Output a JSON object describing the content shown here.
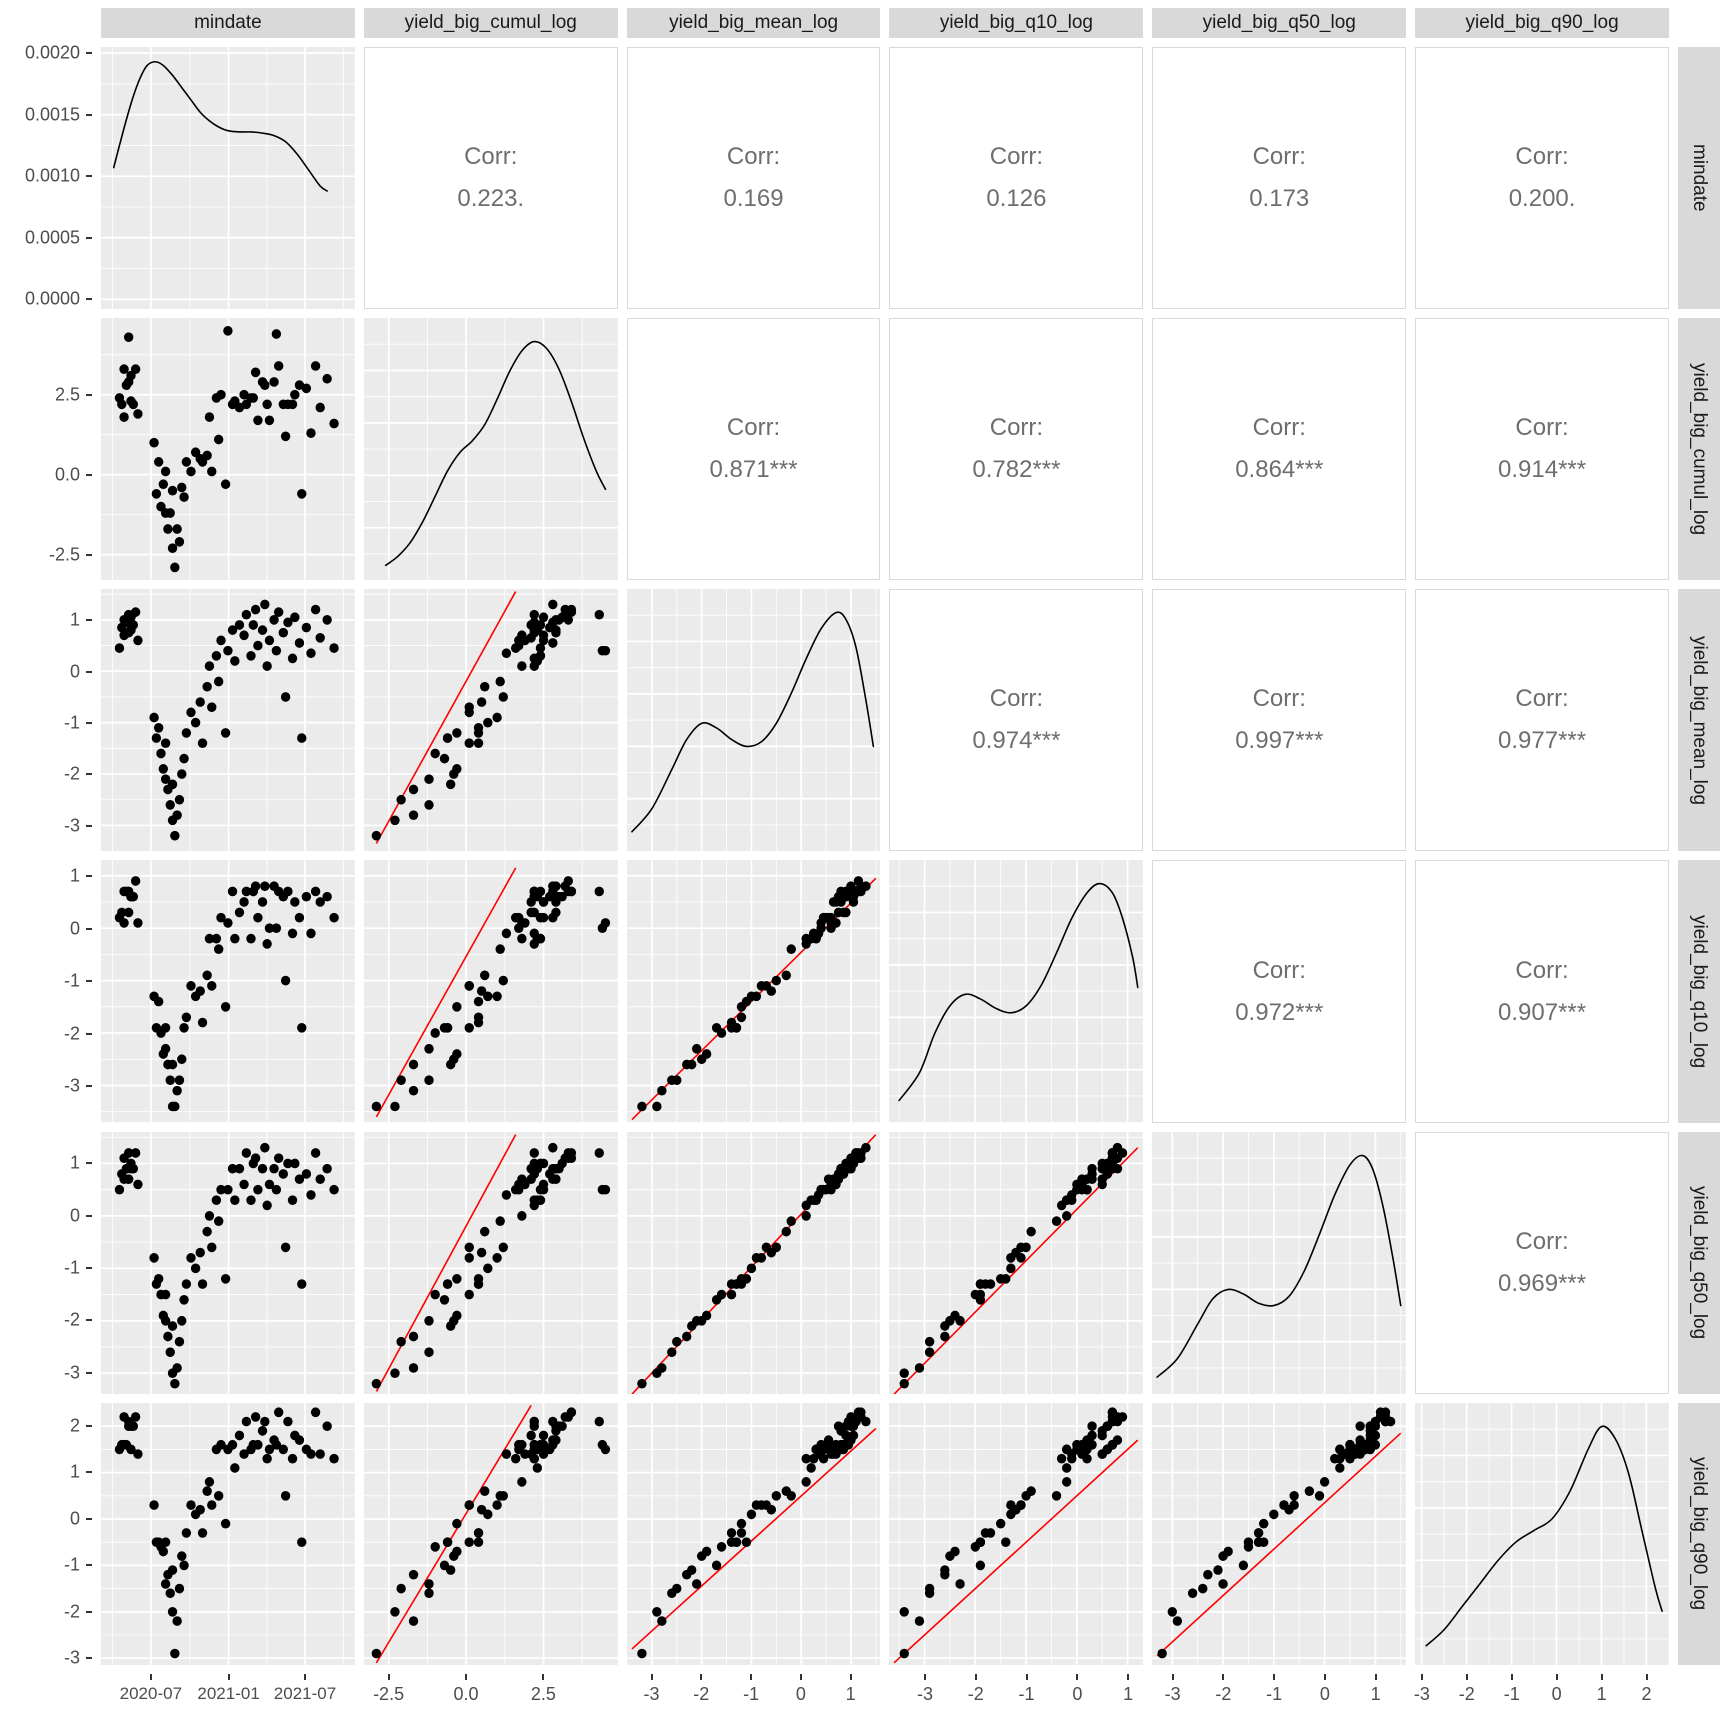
{
  "chart_data": {
    "type": "scatterplot-matrix",
    "corr_prefix": "Corr:",
    "variables": [
      {
        "name": "mindate",
        "domain": [
          -0.05,
          1.05
        ],
        "ticks": [
          0.166,
          0.503,
          0.834
        ],
        "tick_labels": [
          "2020-07",
          "2021-01",
          "2021-07"
        ],
        "minor": [
          0.0,
          0.335,
          0.669,
          1.0
        ]
      },
      {
        "name": "yield_big_cumul_log",
        "domain": [
          -3.3,
          4.9
        ],
        "ticks": [
          -2.5,
          0,
          2.5
        ],
        "tick_labels": [
          "-2.5",
          "0.0",
          "2.5"
        ],
        "minor": [
          -1.25,
          1.25,
          3.75
        ]
      },
      {
        "name": "yield_big_mean_log",
        "domain": [
          -3.5,
          1.6
        ],
        "ticks": [
          -3,
          -2,
          -1,
          0,
          1
        ],
        "tick_labels": [
          "-3",
          "-2",
          "-1",
          "0",
          "1"
        ],
        "minor": [
          -2.5,
          -1.5,
          -0.5,
          0.5,
          1.5
        ]
      },
      {
        "name": "yield_big_q10_log",
        "domain": [
          -3.7,
          1.3
        ],
        "ticks": [
          -3,
          -2,
          -1,
          0,
          1
        ],
        "tick_labels": [
          "-3",
          "-2",
          "-1",
          "0",
          "1"
        ],
        "minor": [
          -3.5,
          -2.5,
          -1.5,
          -0.5,
          0.5
        ]
      },
      {
        "name": "yield_big_q50_log",
        "domain": [
          -3.4,
          1.6
        ],
        "ticks": [
          -3,
          -2,
          -1,
          0,
          1
        ],
        "tick_labels": [
          "-3",
          "-2",
          "-1",
          "0",
          "1"
        ],
        "minor": [
          -2.5,
          -1.5,
          -0.5,
          0.5,
          1.5
        ]
      },
      {
        "name": "yield_big_q90_log",
        "domain": [
          -3.15,
          2.5
        ],
        "ticks": [
          -3,
          -2,
          -1,
          0,
          1,
          2
        ],
        "tick_labels": [
          "-3",
          "-2",
          "-1",
          "0",
          "1",
          "2"
        ],
        "minor": [
          -2.5,
          -1.5,
          -0.5,
          0.5,
          1.5
        ]
      }
    ],
    "density_axis": {
      "domain": [
        -8e-05,
        0.00205
      ],
      "ticks": [
        0,
        0.0005,
        0.001,
        0.0015,
        0.002
      ],
      "tick_labels": [
        "0.0000",
        "0.0005",
        "0.0010",
        "0.0015",
        "0.0020"
      ],
      "minor": [
        0.00025,
        0.00075,
        0.00125,
        0.00175
      ]
    },
    "correlations": [
      {
        "row": 0,
        "col": 1,
        "value": "0.223."
      },
      {
        "row": 0,
        "col": 2,
        "value": "0.169"
      },
      {
        "row": 0,
        "col": 3,
        "value": "0.126"
      },
      {
        "row": 0,
        "col": 4,
        "value": "0.173"
      },
      {
        "row": 0,
        "col": 5,
        "value": "0.200."
      },
      {
        "row": 1,
        "col": 2,
        "value": "0.871***"
      },
      {
        "row": 1,
        "col": 3,
        "value": "0.782***"
      },
      {
        "row": 1,
        "col": 4,
        "value": "0.864***"
      },
      {
        "row": 1,
        "col": 5,
        "value": "0.914***"
      },
      {
        "row": 2,
        "col": 3,
        "value": "0.974***"
      },
      {
        "row": 2,
        "col": 4,
        "value": "0.997***"
      },
      {
        "row": 2,
        "col": 5,
        "value": "0.977***"
      },
      {
        "row": 3,
        "col": 4,
        "value": "0.972***"
      },
      {
        "row": 3,
        "col": 5,
        "value": "0.907***"
      },
      {
        "row": 4,
        "col": 5,
        "value": "0.969***"
      }
    ],
    "regression_lines": [
      {
        "row": 2,
        "col": 1,
        "x1": -2.9,
        "y1": -3.35,
        "x2": 1.6,
        "y2": 1.55
      },
      {
        "row": 3,
        "col": 1,
        "x1": -2.9,
        "y1": -3.6,
        "x2": 1.6,
        "y2": 1.15
      },
      {
        "row": 4,
        "col": 1,
        "x1": -2.9,
        "y1": -3.35,
        "x2": 1.6,
        "y2": 1.55
      },
      {
        "row": 5,
        "col": 1,
        "x1": -2.9,
        "y1": -3.1,
        "x2": 2.1,
        "y2": 2.45
      },
      {
        "row": 3,
        "col": 2,
        "x1": -3.4,
        "y1": -3.65,
        "x2": 1.5,
        "y2": 0.95
      },
      {
        "row": 4,
        "col": 2,
        "x1": -3.4,
        "y1": -3.4,
        "x2": 1.5,
        "y2": 1.55
      },
      {
        "row": 5,
        "col": 2,
        "x1": -3.4,
        "y1": -2.8,
        "x2": 1.5,
        "y2": 1.95
      },
      {
        "row": 4,
        "col": 3,
        "x1": -3.6,
        "y1": -3.4,
        "x2": 1.2,
        "y2": 1.3
      },
      {
        "row": 5,
        "col": 3,
        "x1": -3.6,
        "y1": -3.1,
        "x2": 1.2,
        "y2": 1.7
      },
      {
        "row": 5,
        "col": 4,
        "x1": -3.3,
        "y1": -2.95,
        "x2": 1.5,
        "y2": 1.85
      }
    ],
    "density_curves": {
      "mindate": [
        [
          0.005,
          0.00107
        ],
        [
          0.03,
          0.00125
        ],
        [
          0.06,
          0.00146
        ],
        [
          0.09,
          0.00165
        ],
        [
          0.12,
          0.0018
        ],
        [
          0.15,
          0.0019
        ],
        [
          0.185,
          0.00193
        ],
        [
          0.22,
          0.0019
        ],
        [
          0.26,
          0.00182
        ],
        [
          0.3,
          0.00172
        ],
        [
          0.34,
          0.00162
        ],
        [
          0.38,
          0.00152
        ],
        [
          0.42,
          0.00145
        ],
        [
          0.46,
          0.0014
        ],
        [
          0.5,
          0.00137
        ],
        [
          0.55,
          0.00136
        ],
        [
          0.6,
          0.00136
        ],
        [
          0.65,
          0.00135
        ],
        [
          0.7,
          0.00133
        ],
        [
          0.75,
          0.00128
        ],
        [
          0.8,
          0.00118
        ],
        [
          0.85,
          0.00105
        ],
        [
          0.9,
          0.00092
        ],
        [
          0.93,
          0.00088
        ]
      ],
      "yield_big_cumul_log": [
        [
          -2.6,
          0.03
        ],
        [
          -2.2,
          0.07
        ],
        [
          -1.8,
          0.13
        ],
        [
          -1.4,
          0.22
        ],
        [
          -1.0,
          0.33
        ],
        [
          -0.6,
          0.44
        ],
        [
          -0.2,
          0.52
        ],
        [
          0.2,
          0.57
        ],
        [
          0.6,
          0.64
        ],
        [
          1.0,
          0.75
        ],
        [
          1.4,
          0.87
        ],
        [
          1.8,
          0.96
        ],
        [
          2.2,
          1.0
        ],
        [
          2.6,
          0.97
        ],
        [
          3.0,
          0.88
        ],
        [
          3.4,
          0.74
        ],
        [
          3.8,
          0.58
        ],
        [
          4.2,
          0.44
        ],
        [
          4.5,
          0.36
        ]
      ],
      "yield_big_mean_log": [
        [
          -3.4,
          0.05
        ],
        [
          -3.0,
          0.15
        ],
        [
          -2.6,
          0.32
        ],
        [
          -2.3,
          0.45
        ],
        [
          -2.0,
          0.52
        ],
        [
          -1.7,
          0.5
        ],
        [
          -1.4,
          0.45
        ],
        [
          -1.1,
          0.42
        ],
        [
          -0.8,
          0.44
        ],
        [
          -0.5,
          0.52
        ],
        [
          -0.2,
          0.65
        ],
        [
          0.1,
          0.8
        ],
        [
          0.4,
          0.93
        ],
        [
          0.7,
          1.0
        ],
        [
          0.9,
          0.97
        ],
        [
          1.1,
          0.85
        ],
        [
          1.3,
          0.62
        ],
        [
          1.45,
          0.42
        ]
      ],
      "yield_big_q10_log": [
        [
          -3.5,
          0.06
        ],
        [
          -3.1,
          0.18
        ],
        [
          -2.8,
          0.35
        ],
        [
          -2.5,
          0.47
        ],
        [
          -2.2,
          0.52
        ],
        [
          -1.9,
          0.5
        ],
        [
          -1.6,
          0.46
        ],
        [
          -1.3,
          0.44
        ],
        [
          -1.0,
          0.47
        ],
        [
          -0.7,
          0.56
        ],
        [
          -0.4,
          0.7
        ],
        [
          -0.1,
          0.85
        ],
        [
          0.2,
          0.96
        ],
        [
          0.45,
          1.0
        ],
        [
          0.7,
          0.96
        ],
        [
          0.9,
          0.85
        ],
        [
          1.1,
          0.68
        ],
        [
          1.2,
          0.55
        ]
      ],
      "yield_big_q50_log": [
        [
          -3.3,
          0.04
        ],
        [
          -2.9,
          0.12
        ],
        [
          -2.5,
          0.27
        ],
        [
          -2.2,
          0.38
        ],
        [
          -1.9,
          0.42
        ],
        [
          -1.6,
          0.4
        ],
        [
          -1.3,
          0.36
        ],
        [
          -1.0,
          0.35
        ],
        [
          -0.7,
          0.39
        ],
        [
          -0.4,
          0.5
        ],
        [
          -0.1,
          0.66
        ],
        [
          0.2,
          0.83
        ],
        [
          0.5,
          0.96
        ],
        [
          0.75,
          1.0
        ],
        [
          0.95,
          0.94
        ],
        [
          1.15,
          0.78
        ],
        [
          1.35,
          0.55
        ],
        [
          1.5,
          0.35
        ]
      ],
      "yield_big_q90_log": [
        [
          -2.9,
          0.05
        ],
        [
          -2.5,
          0.12
        ],
        [
          -2.1,
          0.22
        ],
        [
          -1.7,
          0.32
        ],
        [
          -1.3,
          0.42
        ],
        [
          -0.9,
          0.5
        ],
        [
          -0.5,
          0.55
        ],
        [
          -0.1,
          0.6
        ],
        [
          0.3,
          0.72
        ],
        [
          0.7,
          0.9
        ],
        [
          1.0,
          1.0
        ],
        [
          1.3,
          0.95
        ],
        [
          1.6,
          0.8
        ],
        [
          1.9,
          0.55
        ],
        [
          2.2,
          0.3
        ],
        [
          2.35,
          0.2
        ]
      ]
    },
    "observations": [
      [
        0.03,
        2.4,
        0.45,
        0.2,
        0.5,
        1.5
      ],
      [
        0.04,
        2.2,
        0.85,
        0.3,
        0.8,
        1.6
      ],
      [
        0.05,
        3.3,
        1.0,
        0.7,
        1.1,
        2.2
      ],
      [
        0.05,
        1.8,
        0.7,
        0.1,
        0.7,
        1.6
      ],
      [
        0.06,
        2.8,
        0.95,
        0.7,
        0.9,
        1.6
      ],
      [
        0.07,
        4.3,
        1.1,
        0.7,
        1.2,
        2.1
      ],
      [
        0.07,
        2.9,
        0.75,
        0.3,
        0.7,
        2.0
      ],
      [
        0.08,
        2.3,
        0.8,
        0.6,
        0.9,
        1.5
      ],
      [
        0.08,
        3.1,
        1.05,
        0.6,
        1.0,
        2.0
      ],
      [
        0.09,
        2.2,
        0.9,
        0.6,
        0.9,
        2.0
      ],
      [
        0.1,
        3.3,
        1.15,
        0.9,
        1.2,
        2.2
      ],
      [
        0.11,
        1.9,
        0.6,
        0.1,
        0.6,
        1.4
      ],
      [
        0.18,
        1.0,
        -0.9,
        -1.3,
        -0.8,
        0.3
      ],
      [
        0.19,
        -0.6,
        -1.3,
        -1.9,
        -1.3,
        -0.5
      ],
      [
        0.2,
        0.4,
        -1.1,
        -1.4,
        -1.2,
        -0.5
      ],
      [
        0.21,
        -1.0,
        -1.6,
        -2.0,
        -1.5,
        -0.6
      ],
      [
        0.22,
        -0.3,
        -1.9,
        -2.4,
        -1.9,
        -0.7
      ],
      [
        0.23,
        -1.2,
        -2.1,
        -2.3,
        -2.0,
        -1.4
      ],
      [
        0.23,
        0.1,
        -1.4,
        -1.9,
        -1.5,
        -0.5
      ],
      [
        0.24,
        -1.7,
        -2.3,
        -2.6,
        -2.3,
        -1.2
      ],
      [
        0.25,
        -1.2,
        -2.6,
        -2.9,
        -2.6,
        -1.6
      ],
      [
        0.26,
        -2.3,
        -2.9,
        -3.4,
        -3.0,
        -2.0
      ],
      [
        0.26,
        -0.5,
        -2.2,
        -2.6,
        -2.1,
        -1.1
      ],
      [
        0.27,
        -2.9,
        -3.2,
        -3.4,
        -3.2,
        -2.9
      ],
      [
        0.28,
        -1.7,
        -2.8,
        -3.1,
        -2.9,
        -2.2
      ],
      [
        0.29,
        -2.1,
        -2.5,
        -2.9,
        -2.4,
        -1.5
      ],
      [
        0.3,
        -0.4,
        -2.0,
        -2.5,
        -2.0,
        -0.8
      ],
      [
        0.31,
        -0.7,
        -1.7,
        -1.9,
        -1.6,
        -1.0
      ],
      [
        0.32,
        0.4,
        -1.2,
        -1.7,
        -1.3,
        -0.3
      ],
      [
        0.34,
        0.1,
        -0.8,
        -1.1,
        -0.8,
        0.3
      ],
      [
        0.36,
        0.7,
        -1.0,
        -1.3,
        -1.0,
        0.1
      ],
      [
        0.38,
        0.5,
        -0.6,
        -1.2,
        -0.7,
        0.2
      ],
      [
        0.39,
        0.4,
        -1.4,
        -1.8,
        -1.3,
        -0.3
      ],
      [
        0.41,
        0.6,
        -0.3,
        -0.9,
        -0.3,
        0.6
      ],
      [
        0.42,
        1.8,
        0.1,
        -0.2,
        0.0,
        0.8
      ],
      [
        0.43,
        0.1,
        -0.7,
        -1.1,
        -0.6,
        0.3
      ],
      [
        0.45,
        2.4,
        0.3,
        -0.2,
        0.3,
        1.5
      ],
      [
        0.46,
        1.1,
        -0.2,
        -0.4,
        -0.1,
        0.5
      ],
      [
        0.47,
        2.5,
        0.6,
        0.2,
        0.5,
        1.6
      ],
      [
        0.49,
        -0.3,
        -1.2,
        -1.5,
        -1.2,
        -0.1
      ],
      [
        0.5,
        4.5,
        0.4,
        0.1,
        0.5,
        1.5
      ],
      [
        0.52,
        2.2,
        0.8,
        0.7,
        0.9,
        1.6
      ],
      [
        0.53,
        2.3,
        0.2,
        -0.2,
        0.3,
        1.1
      ],
      [
        0.55,
        2.1,
        0.9,
        0.3,
        0.9,
        1.8
      ],
      [
        0.57,
        2.5,
        0.7,
        0.5,
        0.6,
        1.4
      ],
      [
        0.58,
        2.2,
        1.1,
        0.7,
        1.2,
        2.1
      ],
      [
        0.6,
        2.4,
        0.3,
        -0.2,
        0.3,
        1.5
      ],
      [
        0.61,
        2.4,
        0.9,
        0.7,
        1.0,
        1.6
      ],
      [
        0.62,
        3.2,
        1.2,
        0.8,
        1.1,
        2.2
      ],
      [
        0.63,
        1.7,
        0.5,
        0.2,
        0.5,
        1.6
      ],
      [
        0.65,
        2.9,
        0.8,
        0.5,
        0.9,
        1.9
      ],
      [
        0.66,
        2.8,
        1.3,
        0.8,
        1.3,
        2.1
      ],
      [
        0.67,
        2.2,
        0.1,
        -0.3,
        0.2,
        1.3
      ],
      [
        0.68,
        1.7,
        0.6,
        0.0,
        0.6,
        1.5
      ],
      [
        0.7,
        2.9,
        1.0,
        0.8,
        0.9,
        1.7
      ],
      [
        0.71,
        4.4,
        0.4,
        0.0,
        0.5,
        1.6
      ],
      [
        0.72,
        3.4,
        1.15,
        0.7,
        1.1,
        2.3
      ],
      [
        0.74,
        2.2,
        0.75,
        0.6,
        0.8,
        1.5
      ],
      [
        0.75,
        1.2,
        -0.5,
        -1.0,
        -0.6,
        0.5
      ],
      [
        0.76,
        2.2,
        0.95,
        0.7,
        1.0,
        2.1
      ],
      [
        0.78,
        2.2,
        0.25,
        -0.1,
        0.3,
        1.3
      ],
      [
        0.79,
        2.5,
        1.05,
        0.5,
        1.0,
        1.8
      ],
      [
        0.81,
        2.8,
        0.55,
        0.2,
        0.7,
        1.7
      ],
      [
        0.82,
        -0.6,
        -1.3,
        -1.9,
        -1.3,
        -0.5
      ],
      [
        0.84,
        2.7,
        0.85,
        0.6,
        0.8,
        1.5
      ],
      [
        0.86,
        1.3,
        0.35,
        -0.1,
        0.4,
        1.4
      ],
      [
        0.88,
        3.4,
        1.2,
        0.7,
        1.2,
        2.3
      ],
      [
        0.9,
        2.1,
        0.65,
        0.5,
        0.7,
        1.4
      ],
      [
        0.93,
        3.0,
        1.0,
        0.6,
        0.9,
        2.0
      ],
      [
        0.96,
        1.6,
        0.45,
        0.2,
        0.5,
        1.3
      ]
    ]
  },
  "colors": {
    "background": "#ffffff",
    "panel_bg": "#ebebeb",
    "strip_bg": "#d9d9d9",
    "grid": "#ffffff",
    "point": "#000000",
    "density_line": "#000000",
    "regression_line": "#ff0000",
    "corr_text": "#6e6e6e",
    "axis_text": "#4d4d4d",
    "strip_text": "#1a1a1a",
    "tick_mark": "#333333",
    "corr_border": "#d9d9d9"
  }
}
